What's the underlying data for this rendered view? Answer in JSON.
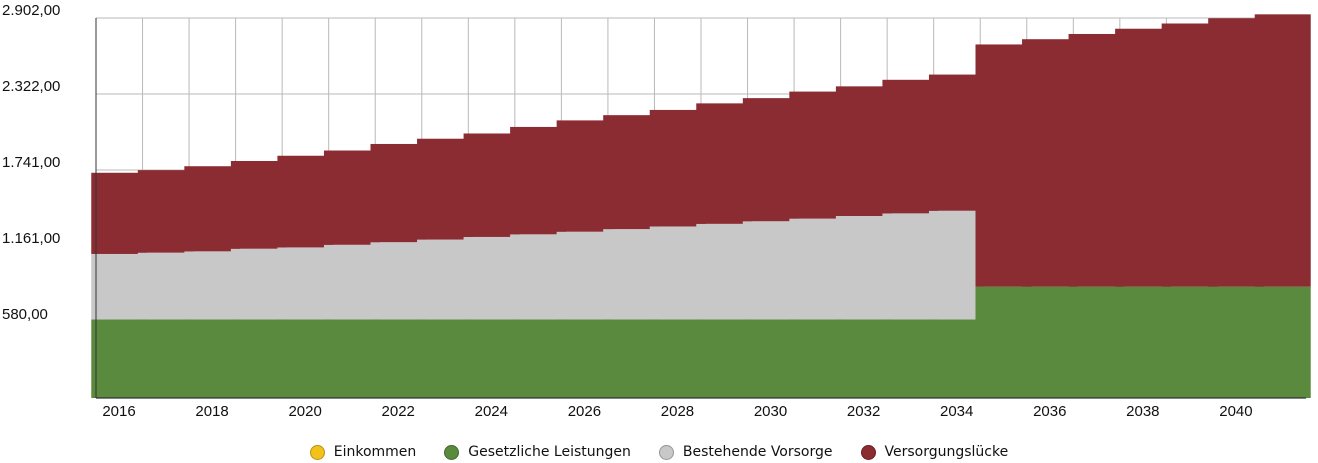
{
  "chart_data": {
    "type": "bar",
    "stacked": true,
    "categories": [
      "2016",
      "2017",
      "2018",
      "2019",
      "2020",
      "2021",
      "2022",
      "2023",
      "2024",
      "2025",
      "2026",
      "2027",
      "2028",
      "2029",
      "2030",
      "2031",
      "2032",
      "2033",
      "2034",
      "2035",
      "2036",
      "2037",
      "2038",
      "2039",
      "2040",
      "2041"
    ],
    "x_tick_labels": [
      "2016",
      "2018",
      "2020",
      "2022",
      "2024",
      "2026",
      "2028",
      "2030",
      "2032",
      "2034",
      "2036",
      "2038",
      "2040"
    ],
    "y_tick_labels": [
      "580,00",
      "1.161,00",
      "1.741,00",
      "2.322,00",
      "2.902,00"
    ],
    "y_ticks": [
      580,
      1161,
      1741,
      2322,
      2902
    ],
    "ylim": [
      0,
      2902
    ],
    "grid": true,
    "legend_position": "bottom",
    "series": [
      {
        "name": "Einkommen",
        "color": "#f2c21b",
        "values": [
          0,
          0,
          0,
          0,
          0,
          0,
          0,
          0,
          0,
          0,
          0,
          0,
          0,
          0,
          0,
          0,
          0,
          0,
          0,
          0,
          0,
          0,
          0,
          0,
          0,
          0
        ]
      },
      {
        "name": "Gesetzliche Leistungen",
        "color": "#5a8a3e",
        "values": [
          600,
          600,
          600,
          600,
          600,
          600,
          600,
          600,
          600,
          600,
          600,
          600,
          600,
          600,
          600,
          600,
          600,
          600,
          600,
          850,
          850,
          850,
          850,
          850,
          850,
          850
        ]
      },
      {
        "name": "Bestehende Vorsorge",
        "color": "#c8c8c8",
        "values": [
          500,
          510,
          520,
          540,
          550,
          570,
          590,
          610,
          630,
          650,
          670,
          690,
          710,
          730,
          750,
          770,
          790,
          810,
          830,
          0,
          0,
          0,
          0,
          0,
          0,
          0
        ]
      },
      {
        "name": "Versorgungslücke",
        "color": "#8b2b32",
        "values": [
          620,
          630,
          650,
          670,
          700,
          720,
          750,
          770,
          790,
          820,
          850,
          870,
          890,
          920,
          940,
          970,
          990,
          1020,
          1040,
          1850,
          1890,
          1930,
          1970,
          2010,
          2050,
          2080
        ]
      }
    ]
  }
}
